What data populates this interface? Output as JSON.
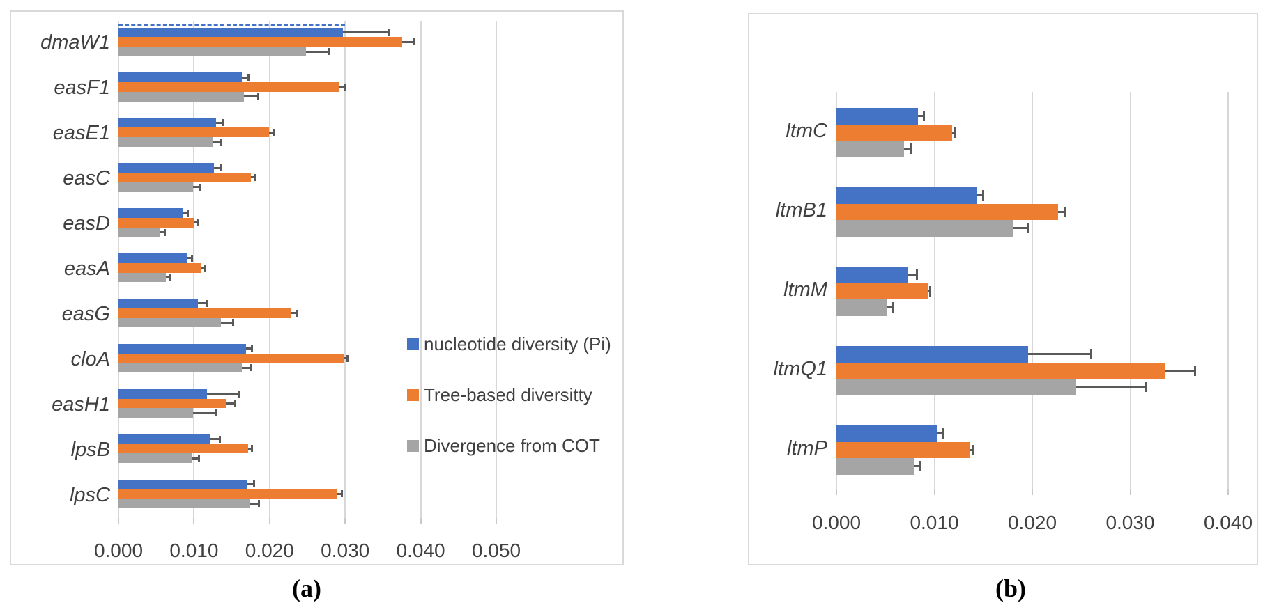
{
  "figure": {
    "caption_a": "(a)",
    "caption_b": "(b)",
    "legend": [
      {
        "label": "nucleotide diversity (Pi)",
        "color": "#4472C4",
        "swatch": "blue-square-icon"
      },
      {
        "label": "Tree-based diversitty",
        "color": "#ED7D31",
        "swatch": "orange-square-icon"
      },
      {
        "label": "Divergence from COT",
        "color": "#A5A5A5",
        "swatch": "gray-square-icon"
      }
    ]
  },
  "colors": {
    "series_blue": "#4472C4",
    "series_orange": "#ED7D31",
    "series_gray": "#A5A5A5",
    "error_bar": "#595959",
    "gridline": "#D8D8D8",
    "panel_border": "#D9D9D9",
    "label_text": "#404040"
  },
  "chart_data": [
    {
      "id": "a",
      "type": "bar",
      "orientation": "horizontal",
      "title": "",
      "xlabel": "",
      "ylabel": "",
      "grid": true,
      "legend_position": "inside-right",
      "categories": [
        "dmaW1",
        "easF1",
        "easE1",
        "easC",
        "easD",
        "easA",
        "easG",
        "cloA",
        "easH1",
        "lpsB",
        "lpsC"
      ],
      "xlim": [
        0,
        0.055
      ],
      "x_ticks": [
        0.0,
        0.01,
        0.02,
        0.03,
        0.04,
        0.05
      ],
      "x_tick_labels": [
        "0.000",
        "0.010",
        "0.020",
        "0.030",
        "0.040",
        "0.050"
      ],
      "series": [
        {
          "name": "nucleotide diversity (Pi)",
          "color": "#4472C4",
          "values": [
            0.0297,
            0.0163,
            0.0129,
            0.0126,
            0.0085,
            0.009,
            0.0105,
            0.0169,
            0.0117,
            0.0122,
            0.0171
          ],
          "errors": [
            0.0061,
            0.0009,
            0.001,
            0.001,
            0.0007,
            0.0007,
            0.0013,
            0.0008,
            0.0043,
            0.0012,
            0.0008
          ]
        },
        {
          "name": "Tree-based diversitty",
          "color": "#ED7D31",
          "values": [
            0.0375,
            0.0292,
            0.0199,
            0.0175,
            0.0101,
            0.0109,
            0.0228,
            0.0298,
            0.0142,
            0.0172,
            0.029
          ],
          "errors": [
            0.0016,
            0.0008,
            0.0006,
            0.0005,
            0.0004,
            0.0005,
            0.0008,
            0.0005,
            0.0012,
            0.0005,
            0.0006
          ]
        },
        {
          "name": "Divergence from COT",
          "color": "#A5A5A5",
          "values": [
            0.0248,
            0.0166,
            0.0125,
            0.0099,
            0.0054,
            0.0063,
            0.0136,
            0.0163,
            0.0099,
            0.0097,
            0.0173
          ],
          "errors": [
            0.003,
            0.0019,
            0.0011,
            0.0009,
            0.0007,
            0.0006,
            0.0016,
            0.0012,
            0.003,
            0.001,
            0.0013
          ]
        }
      ],
      "dashed_outline": {
        "series_index": 0,
        "category_index": 0,
        "note": "blue dmaW1 bar shown with dashed selection outline"
      }
    },
    {
      "id": "b",
      "type": "bar",
      "orientation": "horizontal",
      "title": "",
      "xlabel": "",
      "ylabel": "",
      "grid": true,
      "legend_position": "none",
      "categories": [
        "ltmC",
        "ltmB1",
        "ltmM",
        "ltmQ1",
        "ltmP"
      ],
      "xlim": [
        0,
        0.043
      ],
      "x_ticks": [
        0.0,
        0.01,
        0.02,
        0.03,
        0.04
      ],
      "x_tick_labels": [
        "0.000",
        "0.010",
        "0.020",
        "0.030",
        "0.040"
      ],
      "series": [
        {
          "name": "nucleotide diversity (Pi)",
          "color": "#4472C4",
          "values": [
            0.0083,
            0.0144,
            0.0073,
            0.0196,
            0.0103
          ],
          "errors": [
            0.0006,
            0.0006,
            0.0009,
            0.0064,
            0.0006
          ]
        },
        {
          "name": "Tree-based diversitty",
          "color": "#ED7D31",
          "values": [
            0.0118,
            0.0226,
            0.0094,
            0.0335,
            0.0136
          ],
          "errors": [
            0.0003,
            0.0008,
            0.0002,
            0.0031,
            0.0003
          ]
        },
        {
          "name": "Divergence from COT",
          "color": "#A5A5A5",
          "values": [
            0.0069,
            0.018,
            0.0052,
            0.0245,
            0.008
          ],
          "errors": [
            0.0007,
            0.0016,
            0.0006,
            0.0071,
            0.0006
          ]
        }
      ]
    }
  ]
}
